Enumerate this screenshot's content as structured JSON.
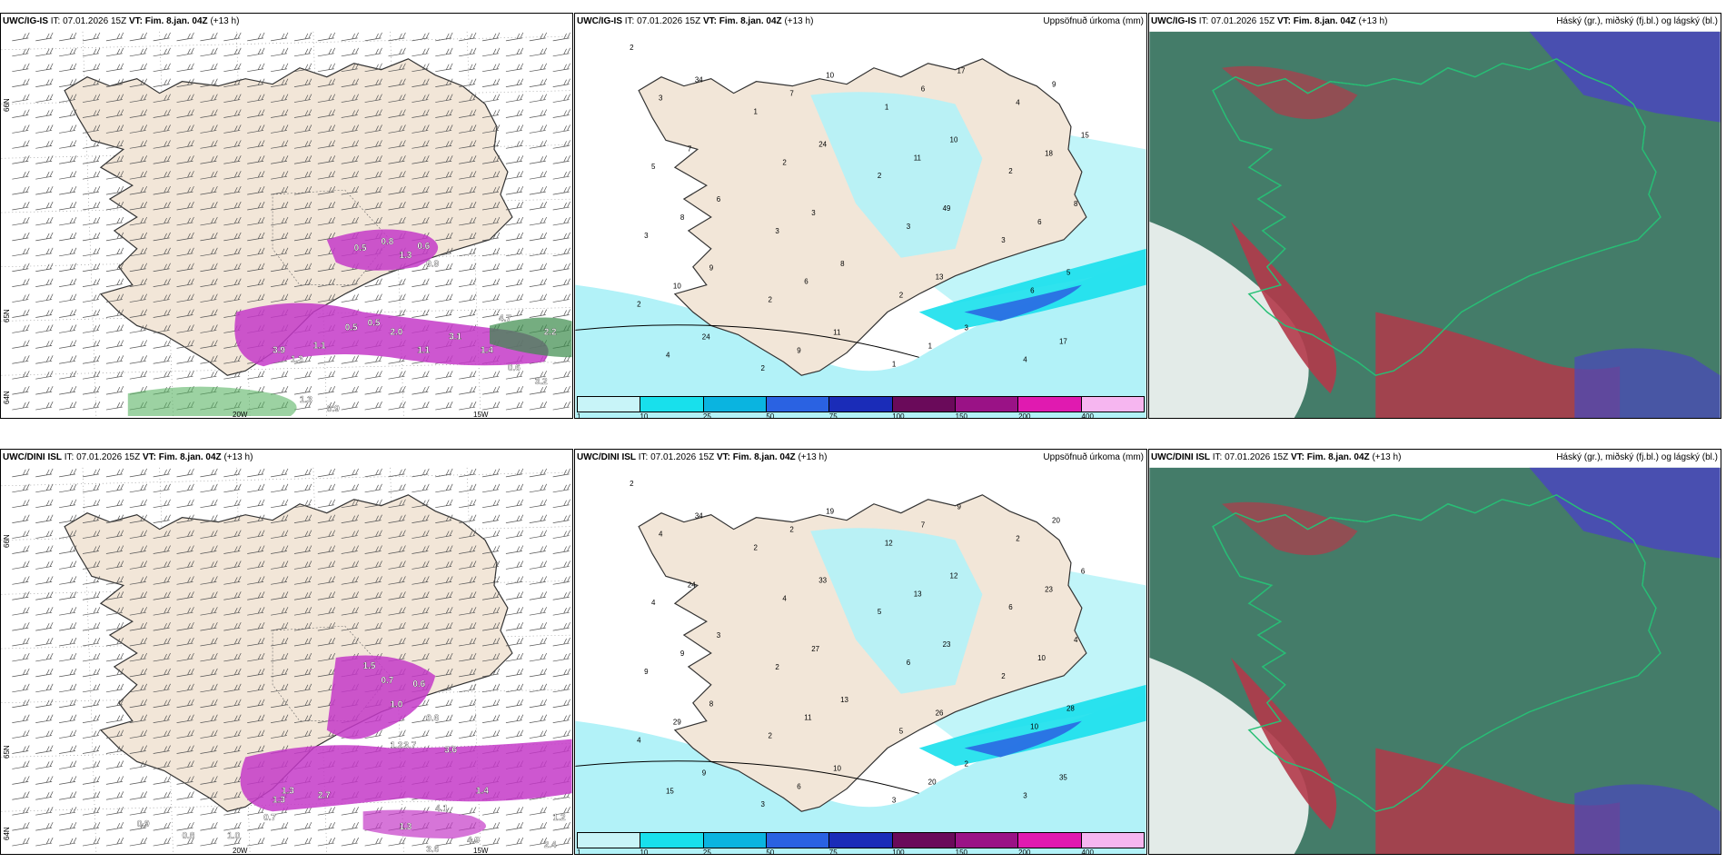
{
  "panels": [
    {
      "id": "r1c1",
      "model": "UWC/IG-IS",
      "it_label": "IT:",
      "it": "07.01.2026 15Z",
      "vt_label": "VT:",
      "vt": "Fim. 8.jan. 04Z",
      "lead": "(+13 h)",
      "right_title": "",
      "lat_labels": [
        "66N",
        "65N",
        "64N"
      ],
      "lon_labels": [
        "20W",
        "15W"
      ],
      "values": [
        "0.5",
        "0.8",
        "1.3",
        "0.9",
        "0.6",
        "3.9",
        "1.3",
        "1.1",
        "0.5",
        "2.0",
        "3.1",
        "1.4",
        "0.6",
        "3.2",
        "0.5",
        "1.1",
        "4.7",
        "2.2",
        "0.9",
        "1.3"
      ]
    },
    {
      "id": "r1c2",
      "model": "UWC/IG-IS",
      "it_label": "IT:",
      "it": "07.01.2026 15Z",
      "vt_label": "VT:",
      "vt": "Fim. 8.jan. 04Z",
      "lead": "(+13 h)",
      "right_title": "Uppsöfnuð úrkoma (mm)",
      "values": [
        "2",
        "1",
        "2",
        "3",
        "2",
        "2",
        "1",
        "2",
        "3",
        "2",
        "1",
        "4",
        "5",
        "3",
        "2",
        "4",
        "3",
        "2",
        "3",
        "6",
        "4",
        "7",
        "11",
        "6",
        "10",
        "9",
        "6",
        "18",
        "8",
        "6",
        "1",
        "9",
        "7",
        "3",
        "13",
        "17",
        "34",
        "24",
        "49",
        "5",
        "24",
        "10",
        "10",
        "8",
        "9",
        "11",
        "17",
        "15",
        "6",
        "8",
        "3"
      ]
    },
    {
      "id": "r1c3",
      "model": "UWC/IG-IS",
      "it_label": "IT:",
      "it": "07.01.2026 15Z",
      "vt_label": "VT:",
      "vt": "Fim. 8.jan. 04Z",
      "lead": "(+13 h)",
      "right_title": "Háský (gr.), miðský (fj.bl.) og lágský (bl.)"
    },
    {
      "id": "r2c1",
      "model": "UWC/DINI ISL",
      "it_label": "IT:",
      "it": "07.01.2026 15Z",
      "vt_label": "VT:",
      "vt": "Fim. 8.jan. 04Z",
      "lead": "(+13 h)",
      "right_title": "",
      "lat_labels": [
        "66N",
        "65N",
        "64N"
      ],
      "lon_labels": [
        "20W",
        "15W"
      ],
      "values": [
        "1.5",
        "0.7",
        "0.6",
        "1.0",
        "0.6",
        "1.2",
        "1.3",
        "2.7",
        "3.7",
        "3.6",
        "1.4",
        "4.1",
        "4.9",
        "1.3",
        "3.6",
        "2.4",
        "1.2",
        "0.9",
        "0.8",
        "1.0",
        "0.7",
        "1.3"
      ]
    },
    {
      "id": "r2c2",
      "model": "UWC/DINI ISL",
      "it_label": "IT:",
      "it": "07.01.2026 15Z",
      "vt_label": "VT:",
      "vt": "Fim. 8.jan. 04Z",
      "lead": "(+13 h)",
      "right_title": "Uppsöfnuð úrkoma (mm)",
      "values": [
        "2",
        "2",
        "5",
        "2",
        "4",
        "3",
        "12",
        "6",
        "9",
        "2",
        "3",
        "2",
        "4",
        "2",
        "5",
        "3",
        "4",
        "4",
        "6",
        "10",
        "15",
        "2",
        "13",
        "10",
        "29",
        "6",
        "7",
        "23",
        "9",
        "11",
        "20",
        "20",
        "24",
        "27",
        "26",
        "35",
        "34",
        "33",
        "23",
        "28",
        "9",
        "19",
        "12",
        "4",
        "8",
        "10",
        "9",
        "6",
        "3",
        "13",
        "2"
      ]
    },
    {
      "id": "r2c3",
      "model": "UWC/DINI ISL",
      "it_label": "IT:",
      "it": "07.01.2026 15Z",
      "vt_label": "VT:",
      "vt": "Fim. 8.jan. 04Z",
      "lead": "(+13 h)",
      "right_title": "Háský (gr.), miðský (fj.bl.) og lágský (bl.)"
    }
  ],
  "colorbar": {
    "labels": [
      "1",
      "10",
      "25",
      "50",
      "75",
      "100",
      "150",
      "200",
      "400"
    ],
    "colors": [
      "#c8f4f8",
      "#18e0ec",
      "#0ab4e0",
      "#2a62e2",
      "#1a2cb8",
      "#6a0a5a",
      "#9a1286",
      "#e01ab0",
      "#f6b6f0"
    ]
  },
  "colors": {
    "land": "#f2e6d8",
    "sea_precip": "#b2f2f8",
    "cloud_low": "#2a6a54",
    "cloud_mid": "#4a4ab8",
    "cloud_high": "#b23a4a",
    "snow_purple": "#c43ac8"
  }
}
